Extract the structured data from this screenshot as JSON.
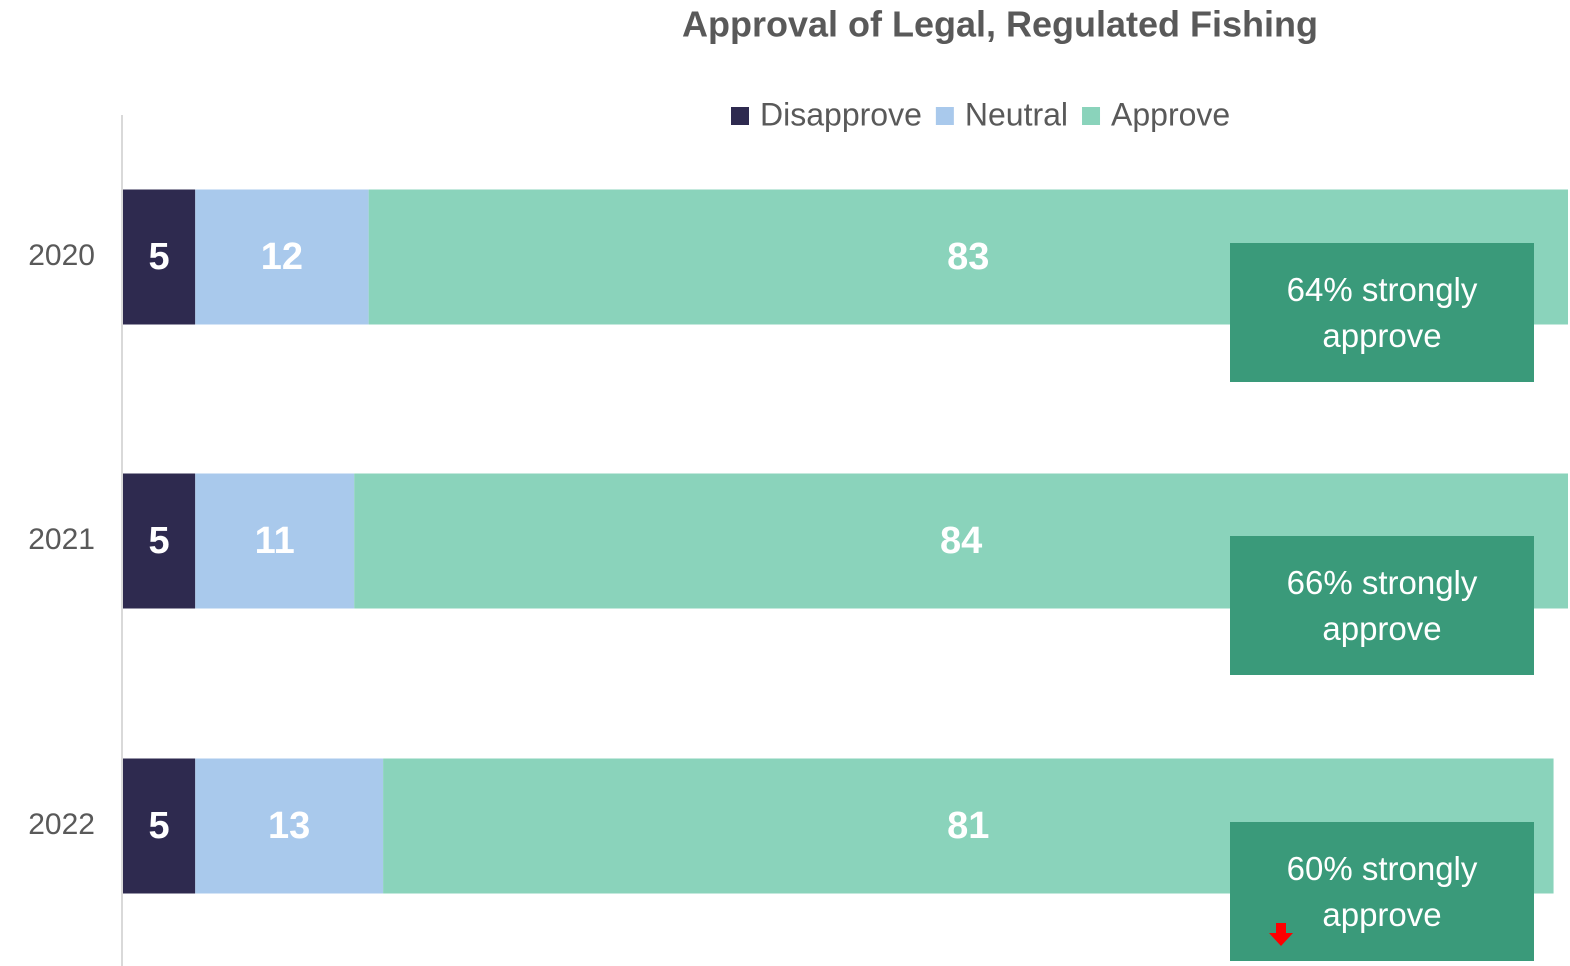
{
  "chart_data": {
    "type": "stacked-bar-horizontal",
    "title": "Approval of Legal, Regulated Fishing",
    "categories": [
      "2020",
      "2021",
      "2022"
    ],
    "series": [
      {
        "name": "Disapprove",
        "color": "#2e2a4f",
        "values": [
          5,
          5,
          5
        ]
      },
      {
        "name": "Neutral",
        "color": "#a9c9ec",
        "values": [
          12,
          11,
          13
        ]
      },
      {
        "name": "Approve",
        "color": "#8ad3bb",
        "values": [
          83,
          84,
          81
        ]
      }
    ],
    "xlim": [
      0,
      100
    ],
    "annotations": [
      "64% strongly approve",
      "66% strongly approve",
      "60% strongly approve"
    ]
  }
}
